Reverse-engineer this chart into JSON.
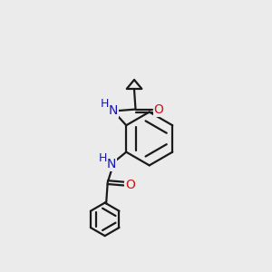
{
  "background_color": "#ebebeb",
  "bond_color": "#1a1a1a",
  "N_color": "#1515b5",
  "O_color": "#cc1515",
  "line_width": 1.6,
  "font_size": 10,
  "fig_size": [
    3.0,
    3.0
  ],
  "dpi": 100,
  "xlim": [
    0,
    10
  ],
  "ylim": [
    0,
    10
  ]
}
